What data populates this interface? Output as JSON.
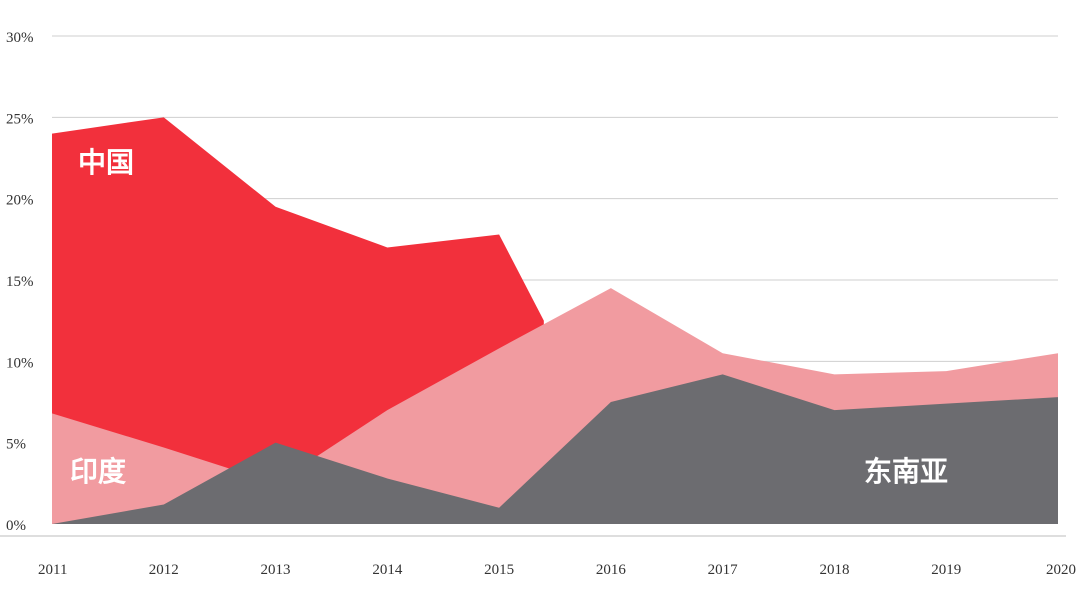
{
  "chart_data": {
    "type": "area",
    "x": [
      "2011",
      "2012",
      "2013",
      "2014",
      "2015",
      "2016",
      "2017",
      "2018",
      "2019",
      "2020"
    ],
    "yticks": [
      "0%",
      "5%",
      "10%",
      "15%",
      "20%",
      "25%",
      "30%"
    ],
    "ylim": [
      0,
      30
    ],
    "grid": true,
    "series": [
      {
        "name": "中国",
        "color": "#f2303c",
        "values": [
          24.0,
          25.0,
          19.5,
          17.0,
          17.8,
          null,
          null,
          null,
          null,
          null
        ],
        "end_x": 2015.4,
        "end_value": 12.5
      },
      {
        "name": "印度",
        "color": "#f19ba0",
        "values": [
          6.8,
          4.7,
          2.5,
          7.0,
          10.8,
          14.5,
          10.5,
          9.2,
          9.4,
          10.5
        ]
      },
      {
        "name": "东南亚",
        "color": "#6c6c70",
        "values": [
          0.0,
          1.2,
          5.0,
          2.8,
          1.0,
          7.5,
          9.2,
          7.0,
          7.4,
          7.8
        ]
      }
    ]
  }
}
